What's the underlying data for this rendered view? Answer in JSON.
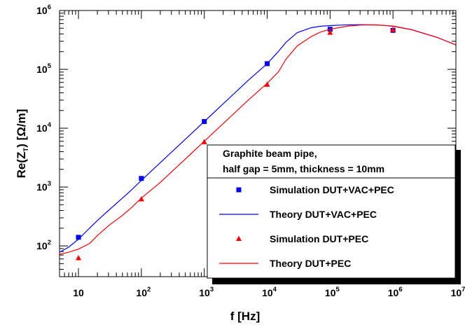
{
  "chart_data": {
    "type": "line",
    "title": "",
    "xlabel": "f [Hz]",
    "ylabel_parts": {
      "main": "Re(Z",
      "sub": "T",
      "tail": ") [Ω/m]"
    },
    "x_scale": "log",
    "y_scale": "log",
    "xlim": [
      5,
      10000000
    ],
    "ylim": [
      30,
      1000000
    ],
    "x_ticks": [
      {
        "value": 10,
        "base": "10",
        "exp": ""
      },
      {
        "value": 100,
        "base": "10",
        "exp": "2"
      },
      {
        "value": 1000,
        "base": "10",
        "exp": "3"
      },
      {
        "value": 10000,
        "base": "10",
        "exp": "4"
      },
      {
        "value": 100000,
        "base": "10",
        "exp": "5"
      },
      {
        "value": 1000000,
        "base": "10",
        "exp": "6"
      },
      {
        "value": 10000000,
        "base": "10",
        "exp": "7"
      }
    ],
    "y_ticks": [
      {
        "value": 100,
        "base": "10",
        "exp": "2"
      },
      {
        "value": 1000,
        "base": "10",
        "exp": "3"
      },
      {
        "value": 10000,
        "base": "10",
        "exp": "4"
      },
      {
        "value": 100000,
        "base": "10",
        "exp": "5"
      },
      {
        "value": 1000000,
        "base": "10",
        "exp": "6"
      }
    ],
    "grid": false,
    "legend_position": "bottom-right",
    "legend_header": [
      "Graphite beam pipe,",
      "half gap = 5mm, thickness = 10mm"
    ],
    "series": [
      {
        "name": "Simulation DUT+VAC+PEC",
        "kind": "scatter",
        "marker": "square",
        "color": "#0000ff",
        "x": [
          10,
          100,
          1000,
          10000,
          100000,
          1000000
        ],
        "y": [
          140,
          1400,
          13000,
          125000,
          480000,
          460000
        ]
      },
      {
        "name": "Theory DUT+VAC+PEC",
        "kind": "line",
        "color": "#0000ff",
        "x": [
          5,
          7,
          10,
          15,
          20,
          30,
          50,
          70,
          100,
          200,
          500,
          1000,
          2000,
          5000,
          10000,
          15000,
          20000,
          30000,
          50000,
          70000,
          100000,
          150000,
          200000,
          300000,
          500000,
          700000,
          1000000,
          2000000,
          5000000,
          10000000
        ],
        "y": [
          78,
          95,
          130,
          200,
          270,
          400,
          650,
          900,
          1300,
          2600,
          6500,
          13000,
          26000,
          65000,
          125000,
          200000,
          290000,
          420000,
          510000,
          540000,
          555000,
          565000,
          570000,
          575000,
          570000,
          560000,
          540000,
          470000,
          350000,
          260000
        ]
      },
      {
        "name": "Simulation DUT+PEC",
        "kind": "scatter",
        "marker": "triangle",
        "color": "#ff0000",
        "x": [
          10,
          100,
          1000,
          10000,
          100000,
          1000000
        ],
        "y": [
          62,
          620,
          5800,
          55000,
          420000,
          470000
        ]
      },
      {
        "name": "Theory DUT+PEC",
        "kind": "line",
        "color": "#ff0000",
        "x": [
          5,
          7,
          10,
          15,
          20,
          30,
          50,
          70,
          100,
          200,
          500,
          1000,
          2000,
          5000,
          10000,
          15000,
          20000,
          30000,
          50000,
          70000,
          100000,
          150000,
          200000,
          300000,
          500000,
          700000,
          1000000,
          2000000,
          5000000,
          10000000
        ],
        "y": [
          72,
          78,
          88,
          110,
          150,
          220,
          330,
          450,
          650,
          1200,
          3000,
          6000,
          12000,
          30000,
          58000,
          90000,
          150000,
          250000,
          360000,
          430000,
          480000,
          520000,
          545000,
          565000,
          570000,
          560000,
          545000,
          470000,
          350000,
          260000
        ]
      }
    ]
  }
}
